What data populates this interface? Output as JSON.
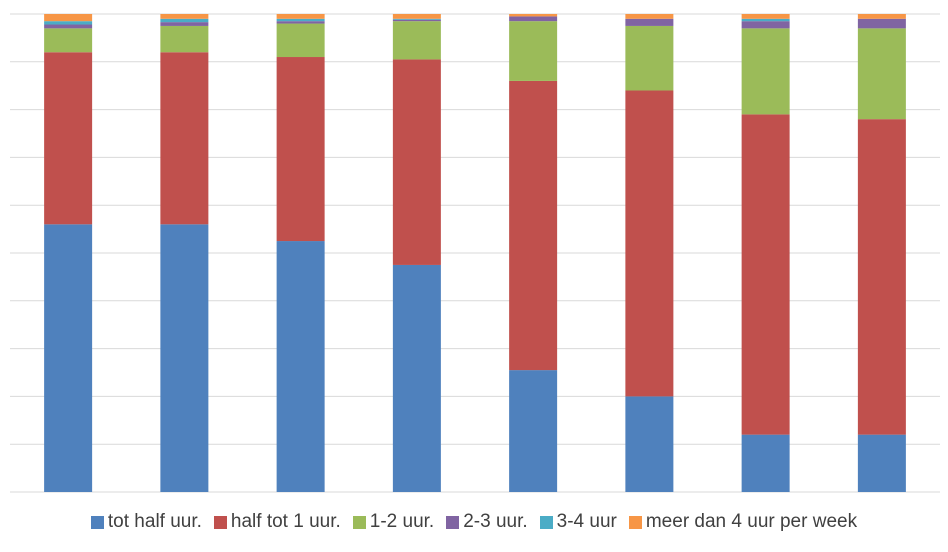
{
  "chart_data": {
    "type": "bar",
    "stacked": true,
    "percent_stacked": true,
    "categories": [
      "",
      "",
      "",
      "",
      "",
      "",
      "",
      ""
    ],
    "ylim": [
      0,
      100
    ],
    "grid": true,
    "legend_position": "bottom",
    "series": [
      {
        "name": "tot half uur.",
        "color": "#4F81BD",
        "values": [
          56,
          56,
          52.5,
          47.5,
          25.5,
          20,
          12,
          12
        ]
      },
      {
        "name": "half tot 1 uur.",
        "color": "#C0504D",
        "values": [
          36,
          36,
          38.5,
          43,
          60.5,
          64,
          67,
          66
        ]
      },
      {
        "name": "1-2 uur.",
        "color": "#9BBB59",
        "values": [
          5,
          5.5,
          7,
          8,
          12.5,
          13.5,
          18,
          19
        ]
      },
      {
        "name": "2-3 uur.",
        "color": "#8064A2",
        "values": [
          0.8,
          0.8,
          0.5,
          0.3,
          1,
          1.5,
          1.5,
          2
        ]
      },
      {
        "name": "3-4 uur",
        "color": "#4BACC6",
        "values": [
          0.7,
          0.7,
          0.5,
          0.2,
          0,
          0,
          0.5,
          0
        ]
      },
      {
        "name": "meer dan 4 uur per week",
        "color": "#F79646",
        "values": [
          1.5,
          1,
          1,
          1,
          0.5,
          1,
          1,
          1
        ]
      }
    ]
  }
}
